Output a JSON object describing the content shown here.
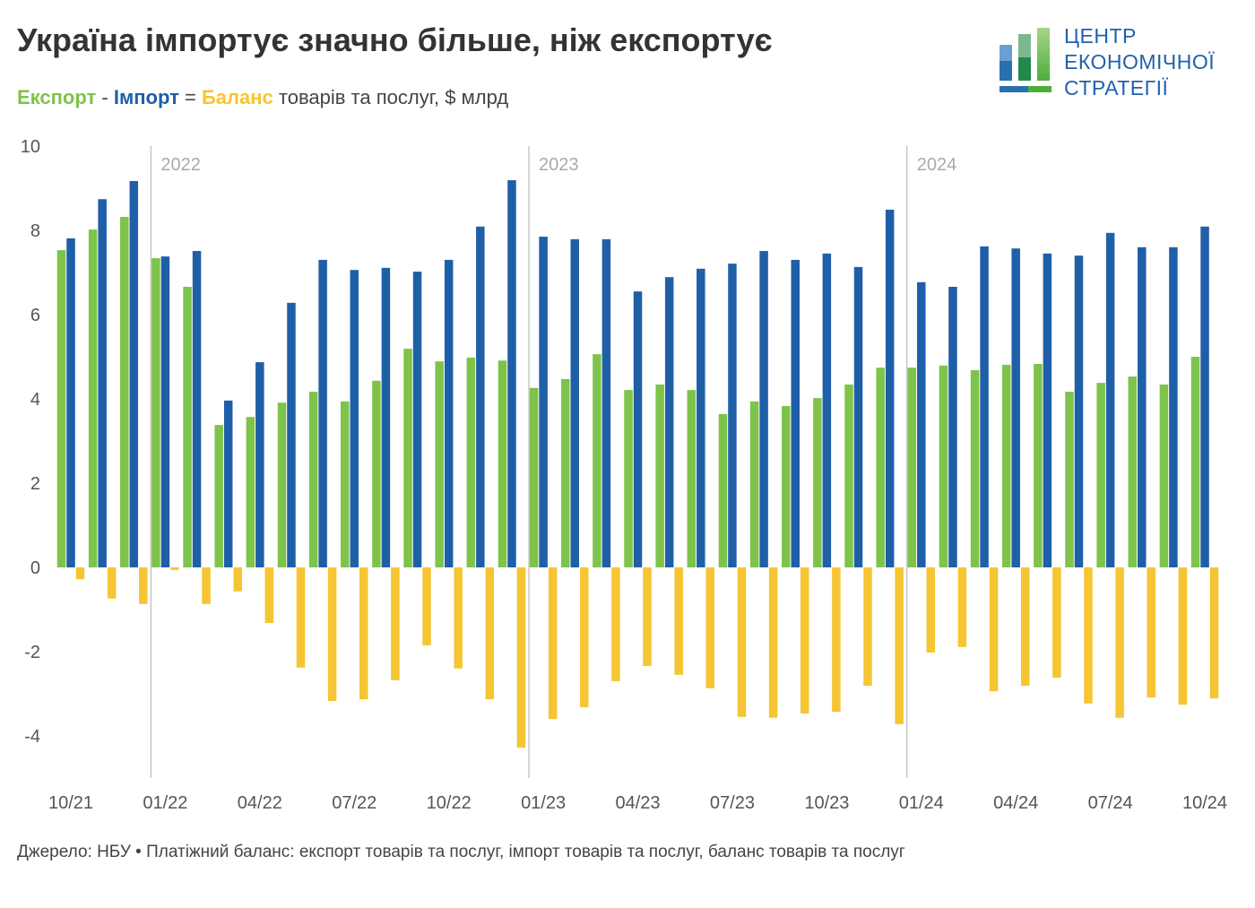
{
  "title": "Україна імпортує значно більше, ніж експортує",
  "subtitle": {
    "export": "Експорт",
    "minus": " - ",
    "import": "Імпорт",
    "equals": " = ",
    "balance": "Баланс",
    "rest": " товарів та послуг, $ млрд"
  },
  "logo": {
    "line1": "ЦЕНТР",
    "line2": "ЕКОНОМІЧНОЇ",
    "line3": "СТРАТЕГІЇ"
  },
  "source": "Джерело: НБУ • Платіжний баланс: експорт товарів та послуг, імпорт товарів та послуг, баланс товарів та послуг",
  "colors": {
    "export": "#7ec34a",
    "import": "#1f5fa8",
    "balance": "#f6c533"
  },
  "chart_data": {
    "type": "bar",
    "ylim": [
      -5,
      10
    ],
    "yticks": [
      10,
      8,
      6,
      4,
      2,
      0,
      -2,
      -4
    ],
    "grid": false,
    "year_markers": [
      {
        "label": "2022",
        "before": "01/22"
      },
      {
        "label": "2023",
        "before": "01/23"
      },
      {
        "label": "2024",
        "before": "01/24"
      }
    ],
    "xtick_labels": [
      "10/21",
      "01/22",
      "04/22",
      "07/22",
      "10/22",
      "01/23",
      "04/23",
      "07/23",
      "10/23",
      "01/24",
      "04/24",
      "07/24",
      "10/24"
    ],
    "categories": [
      "10/21",
      "11/21",
      "12/21",
      "01/22",
      "02/22",
      "03/22",
      "04/22",
      "05/22",
      "06/22",
      "07/22",
      "08/22",
      "09/22",
      "10/22",
      "11/22",
      "12/22",
      "01/23",
      "02/23",
      "03/23",
      "04/23",
      "05/23",
      "06/23",
      "07/23",
      "08/23",
      "09/23",
      "10/23",
      "11/23",
      "12/23",
      "01/24",
      "02/24",
      "03/24",
      "04/24",
      "05/24",
      "06/24",
      "07/24",
      "08/24",
      "09/24",
      "10/24"
    ],
    "series": [
      {
        "name": "Експорт",
        "values": [
          7.53,
          8.02,
          8.32,
          7.34,
          6.66,
          3.38,
          3.57,
          3.91,
          4.17,
          3.94,
          4.43,
          5.19,
          4.89,
          4.98,
          4.91,
          4.26,
          4.47,
          5.06,
          4.21,
          4.34,
          4.21,
          3.64,
          3.94,
          3.83,
          4.02,
          4.34,
          4.74,
          4.74,
          4.79,
          4.68,
          4.81,
          4.83,
          4.17,
          4.38,
          4.53,
          4.34,
          5.0
        ]
      },
      {
        "name": "Імпорт",
        "values": [
          7.81,
          8.74,
          9.17,
          7.38,
          7.51,
          3.96,
          4.87,
          6.28,
          7.3,
          7.06,
          7.11,
          7.02,
          7.3,
          8.09,
          9.19,
          7.85,
          7.79,
          7.79,
          6.55,
          6.89,
          7.09,
          7.21,
          7.51,
          7.3,
          7.45,
          7.13,
          8.49,
          6.77,
          6.66,
          7.62,
          7.57,
          7.45,
          7.4,
          7.94,
          7.6,
          7.6,
          8.09
        ]
      },
      {
        "name": "Баланс",
        "values": [
          -0.28,
          -0.74,
          -0.87,
          -0.06,
          -0.87,
          -0.57,
          -1.32,
          -2.38,
          -3.17,
          -3.13,
          -2.68,
          -1.85,
          -2.4,
          -3.13,
          -4.28,
          -3.6,
          -3.32,
          -2.7,
          -2.34,
          -2.55,
          -2.87,
          -3.55,
          -3.57,
          -3.47,
          -3.43,
          -2.81,
          -3.72,
          -2.02,
          -1.89,
          -2.94,
          -2.81,
          -2.62,
          -3.23,
          -3.57,
          -3.09,
          -3.26,
          -3.11
        ]
      }
    ]
  }
}
